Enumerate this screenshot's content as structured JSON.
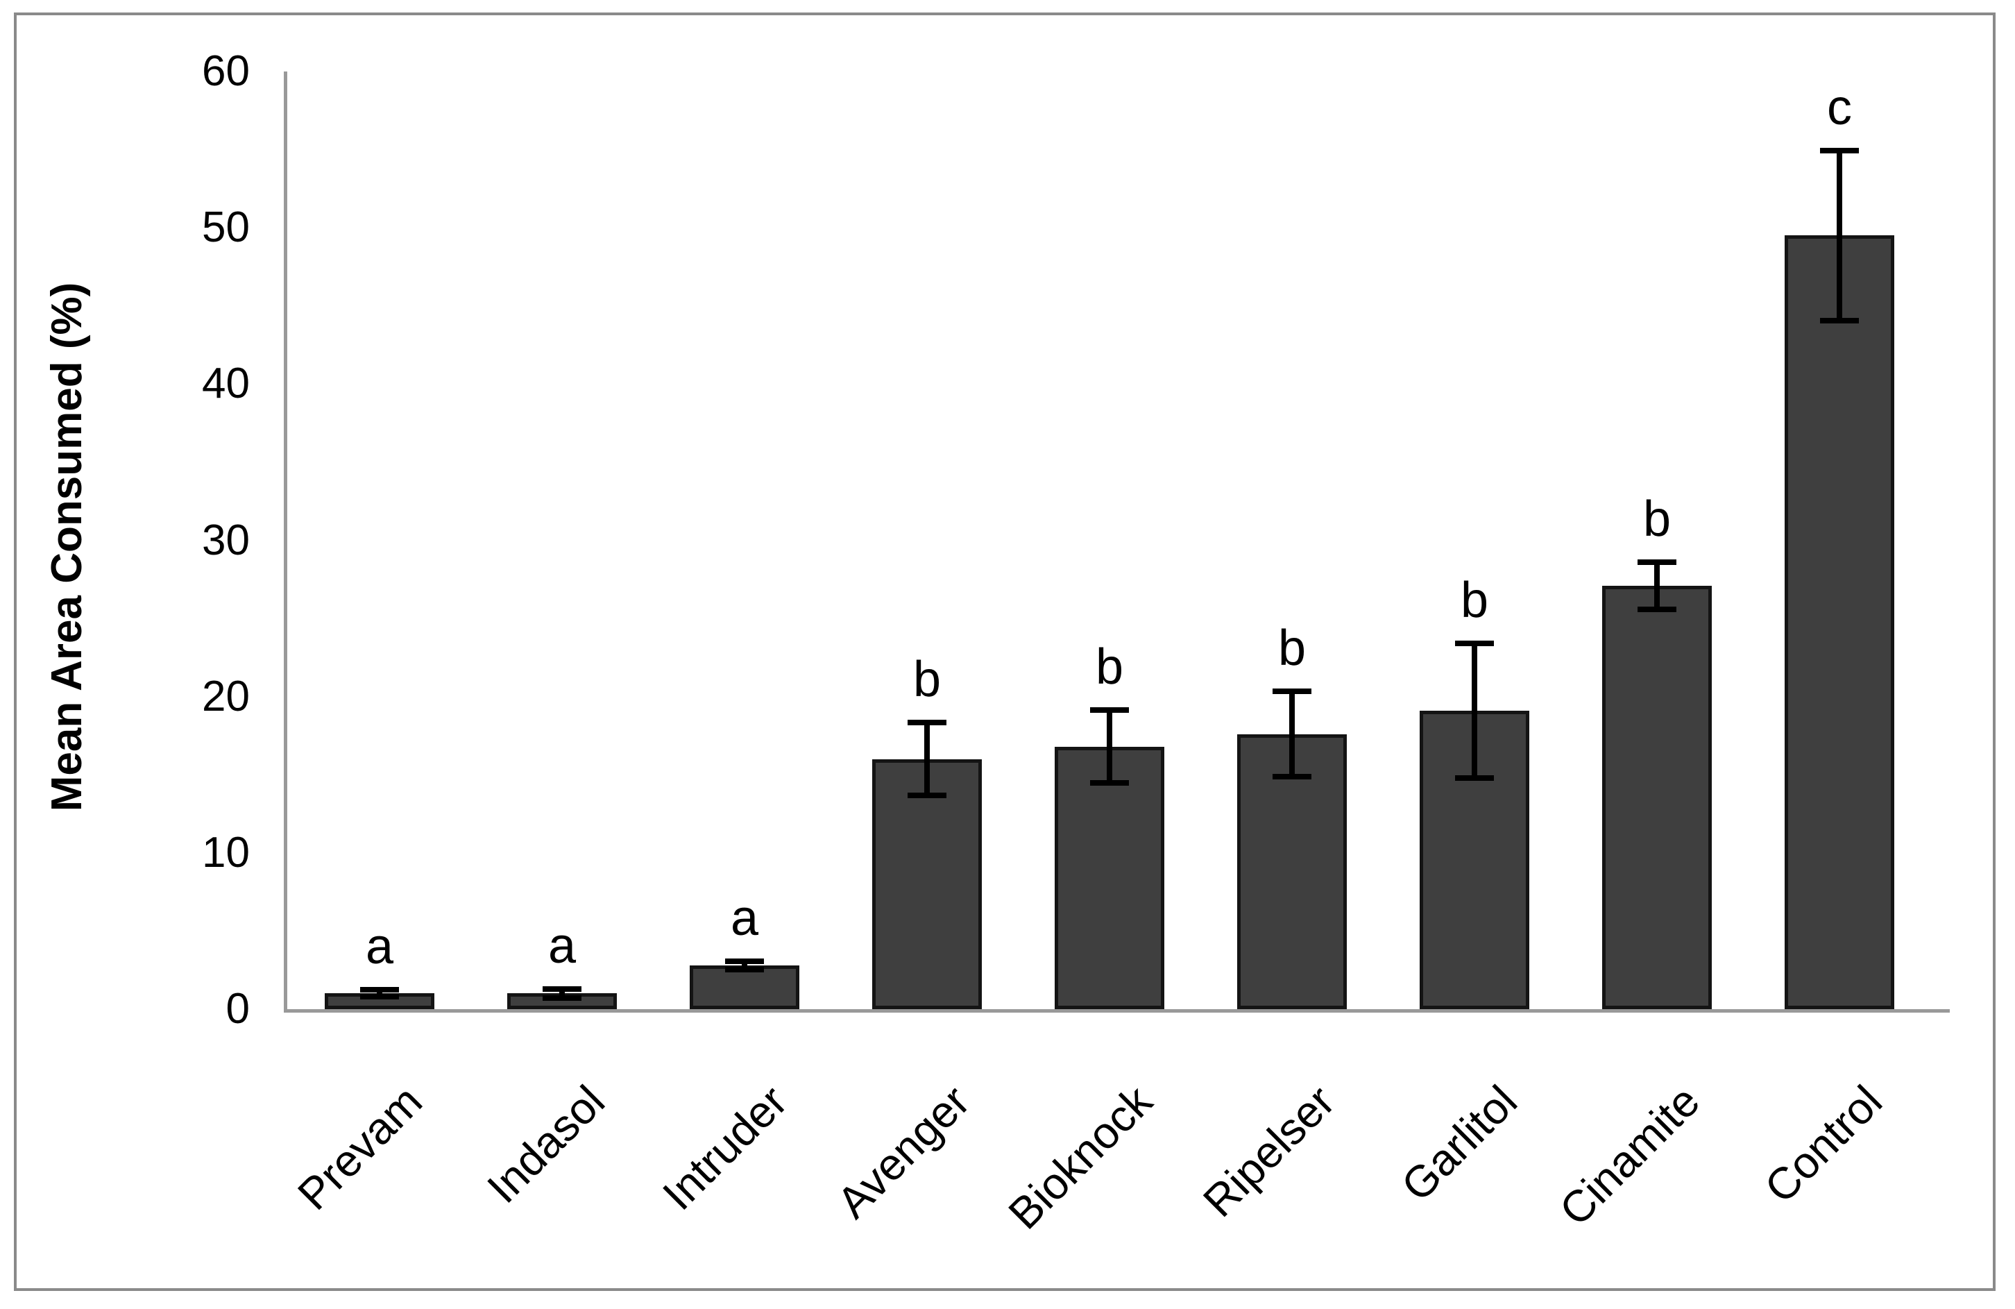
{
  "figure": {
    "background_color": "#ffffff",
    "frame_border_color": "#8a8a8a"
  },
  "chart_data": {
    "type": "bar",
    "title": "",
    "xlabel": "",
    "ylabel": "Mean Area Consumed (%)",
    "ylim": [
      0,
      60
    ],
    "yticks": [
      0,
      10,
      20,
      30,
      40,
      50,
      60
    ],
    "grid": false,
    "legend": false,
    "categories": [
      "Prevam",
      "Indasol",
      "Intruder",
      "Avenger",
      "Bioknock",
      "Ripelser",
      "Garlitol",
      "Cinamite",
      "Control"
    ],
    "values": [
      1.0,
      1.0,
      2.8,
      16.0,
      16.8,
      17.6,
      19.1,
      27.1,
      49.5
    ],
    "errors": [
      0.4,
      0.45,
      0.45,
      2.5,
      2.5,
      2.9,
      4.5,
      1.7,
      5.6
    ],
    "sig_letters": [
      "a",
      "a",
      "a",
      "b",
      "b",
      "b",
      "b",
      "b",
      "c"
    ],
    "bar_color": "#3f3f3f",
    "bar_border_color": "#141414",
    "error_bar_color": "#000000",
    "axis_line_color": "#999999",
    "text_color": "#000000"
  }
}
